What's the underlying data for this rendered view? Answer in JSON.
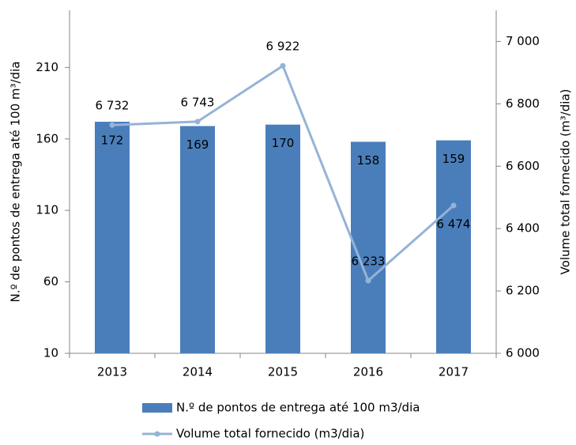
{
  "chart_data": {
    "type": "bar",
    "categories": [
      "2013",
      "2014",
      "2015",
      "2016",
      "2017"
    ],
    "series": [
      {
        "name": "N.º de pontos de entrega até 100 m3/dia",
        "type": "bar",
        "color": "#4a7ebb",
        "values": [
          172,
          169,
          170,
          158,
          159
        ]
      },
      {
        "name": "Volume total fornecido (m3/dia)",
        "type": "line",
        "axis": "y2",
        "color": "#95b3d7",
        "values": [
          6732,
          6743,
          6922,
          6233,
          6474
        ],
        "value_labels": [
          "6 732",
          "6 743",
          "6 922",
          "6 233",
          "6 474"
        ]
      }
    ],
    "ylabel": "N.º de pontos de entrega até 100 m³/dia",
    "y2label": "Volume total fornecido (m³/dia)",
    "ylim": [
      10,
      250
    ],
    "yticks": [
      10,
      60,
      110,
      160,
      210
    ],
    "y2lim": [
      6000,
      7100
    ],
    "y2ticks": [
      {
        "value": 6000,
        "label": "6 000"
      },
      {
        "value": 6200,
        "label": "6 200"
      },
      {
        "value": 6400,
        "label": "6 400"
      },
      {
        "value": 6600,
        "label": "6 600"
      },
      {
        "value": 6800,
        "label": "6 800"
      },
      {
        "value": 7000,
        "label": "7 000"
      }
    ],
    "grid": false,
    "legend": "bottom"
  }
}
